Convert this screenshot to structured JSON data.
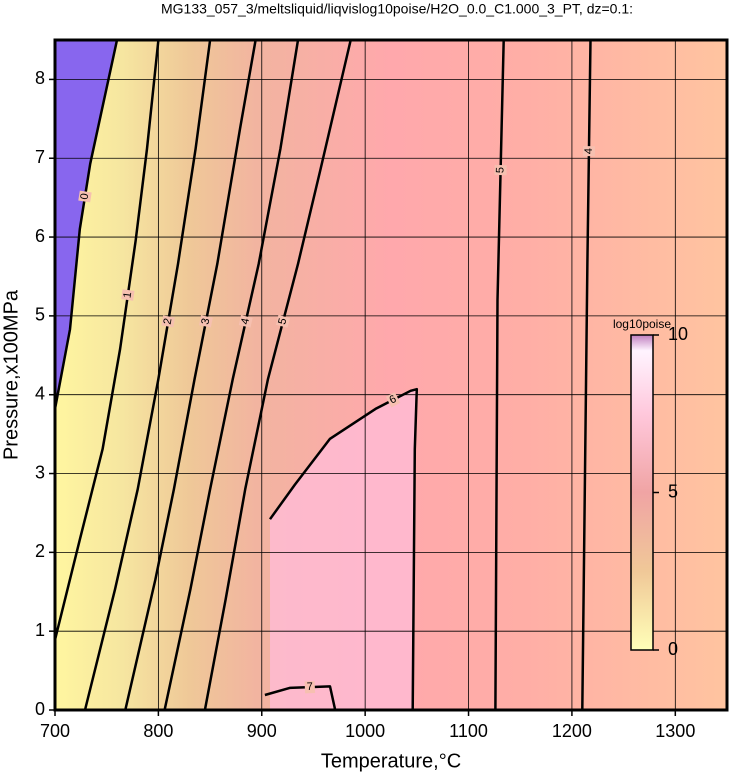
{
  "chart_data": {
    "type": "contour",
    "title": "MG133_057_3/meltsliquid/liqvislog10poise/H2O_0.0_C1.000_3_PT, dz=0.1:",
    "x_label": "Temperature,°C",
    "y_label": "Pressure,x100MPa",
    "xlim": [
      700,
      1350
    ],
    "ylim": [
      0,
      8.5
    ],
    "xticks": [
      700,
      800,
      900,
      1000,
      1100,
      1200,
      1300
    ],
    "yticks": [
      0,
      1,
      2,
      3,
      4,
      5,
      6,
      7,
      8
    ],
    "grid": true,
    "contours": [
      {
        "level": 0,
        "x": [
          700,
          714.5,
          724,
          734,
          760
        ],
        "y": [
          3.82,
          4.83,
          6.1,
          6.93,
          8.5
        ]
      },
      {
        "level": 1,
        "x": [
          700,
          724,
          746,
          763,
          778,
          789,
          800
        ],
        "y": [
          0.89,
          2.16,
          3.31,
          4.58,
          5.95,
          7.12,
          8.5
        ]
      },
      {
        "level": 2,
        "x": [
          729,
          758,
          780,
          800,
          819,
          836,
          850
        ],
        "y": [
          0,
          1.53,
          2.8,
          4.2,
          5.66,
          7.12,
          8.5
        ]
      },
      {
        "level": 3,
        "x": [
          768,
          797,
          815,
          835,
          857,
          879,
          894
        ],
        "y": [
          0,
          1.65,
          2.8,
          4.2,
          5.66,
          7.38,
          8.5
        ]
      },
      {
        "level": 4,
        "x": [
          806,
          831,
          850,
          872,
          897,
          918,
          935
        ],
        "y": [
          0,
          1.53,
          2.8,
          4.2,
          5.66,
          7.12,
          8.5
        ]
      },
      {
        "level": 5,
        "x": [
          845,
          865,
          884,
          906,
          935,
          957,
          986
        ],
        "y": [
          0,
          1.4,
          2.8,
          4.2,
          5.66,
          6.87,
          8.5
        ]
      },
      {
        "level": 6,
        "x": [
          908,
          932,
          966,
          1010,
          1044,
          1050,
          1048,
          1046
        ],
        "y": [
          2.42,
          2.86,
          3.44,
          3.82,
          4.05,
          4.07,
          3.31,
          0
        ]
      },
      {
        "level": 7,
        "x": [
          903,
          927,
          966,
          971
        ],
        "y": [
          0.19,
          0.28,
          0.3,
          0
        ]
      },
      {
        "level": 5,
        "x": [
          1126,
          1128,
          1134
        ],
        "y": [
          0,
          5.2,
          8.5
        ]
      },
      {
        "level": 4,
        "x": [
          1210,
          1215,
          1218
        ],
        "y": [
          0,
          5.68,
          8.5
        ]
      }
    ],
    "colorbar": {
      "label": "log10poise",
      "lim": [
        0,
        10
      ],
      "ticks": [
        0,
        5,
        10
      ]
    }
  }
}
